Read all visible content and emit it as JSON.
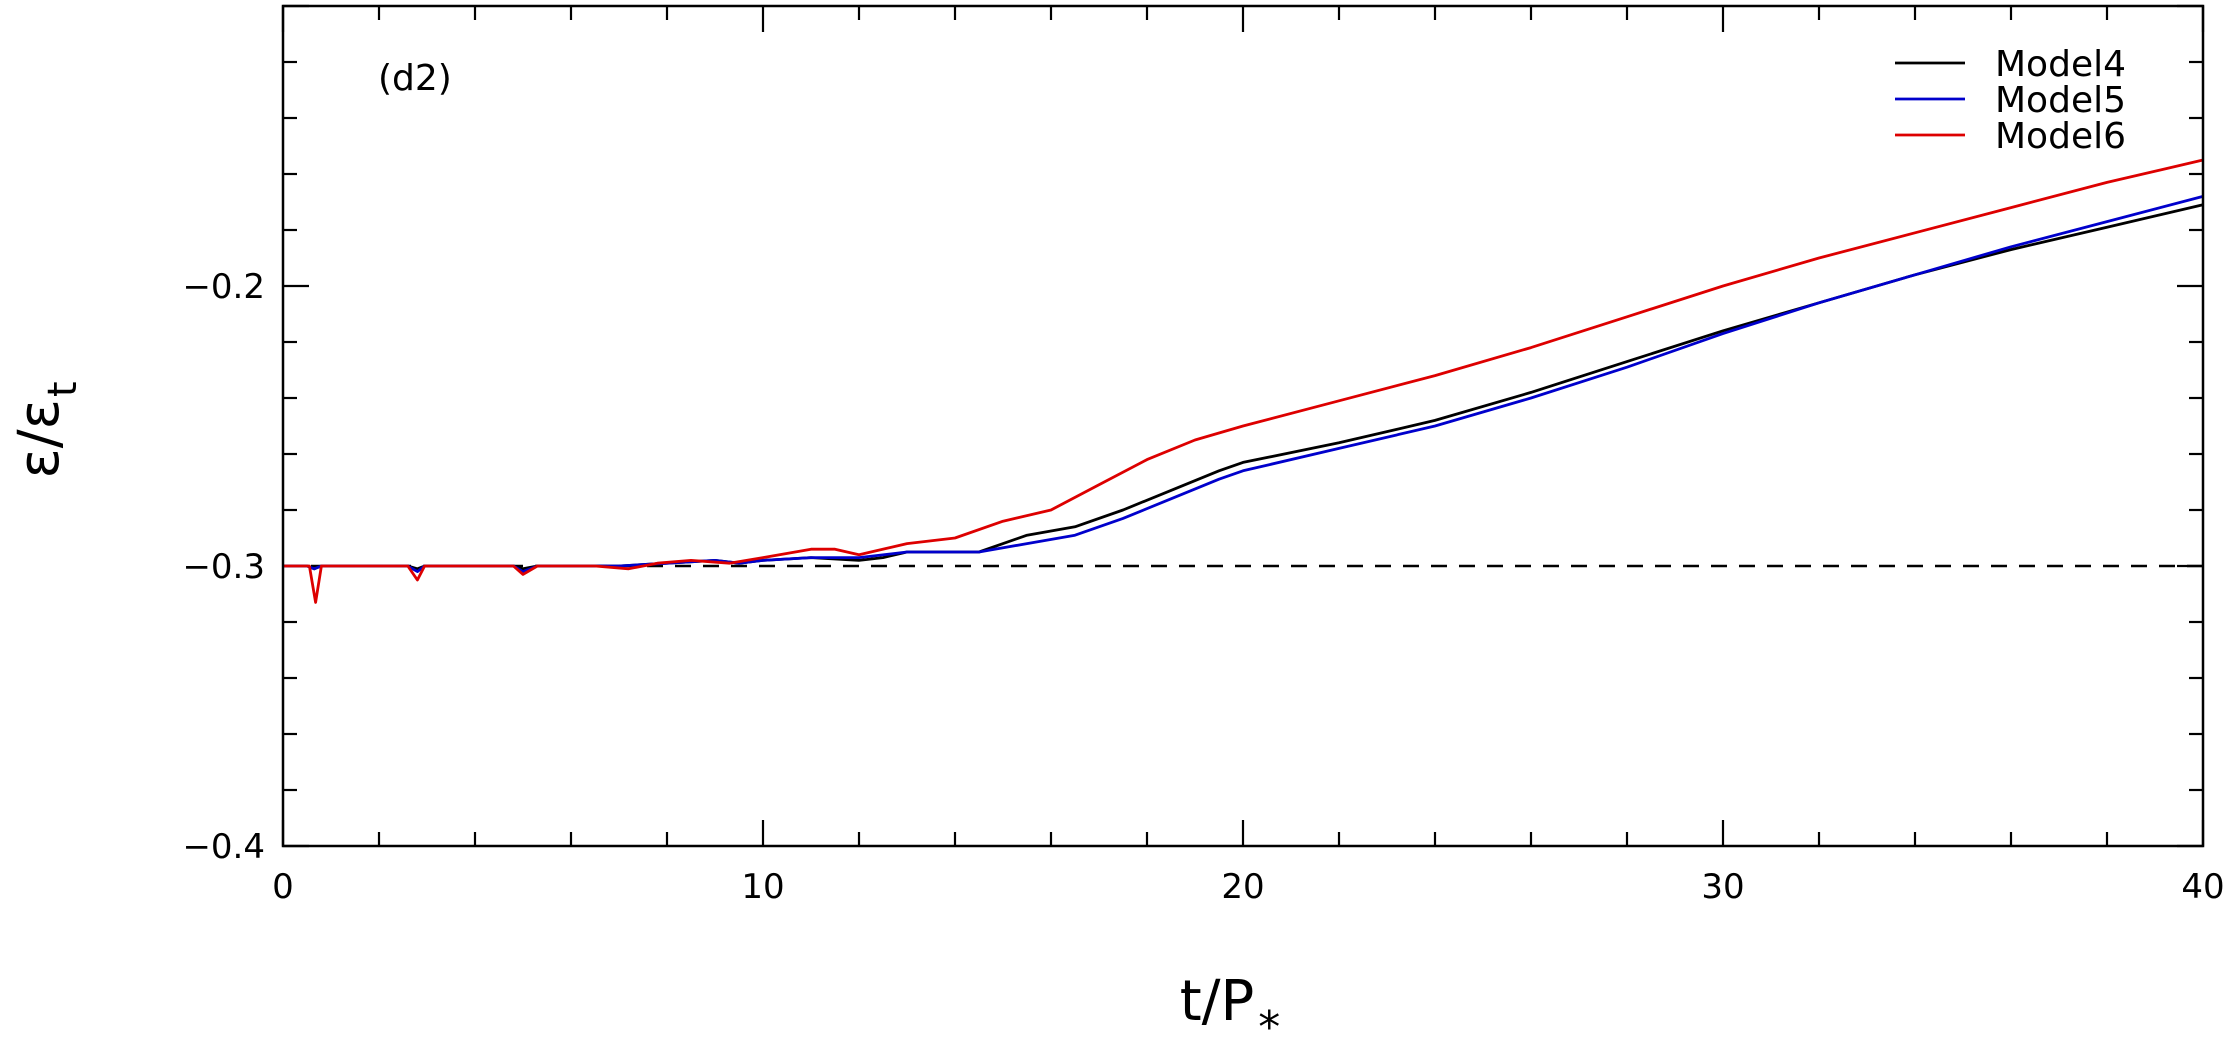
{
  "chart_data": {
    "type": "line",
    "panel_label": "(d2)",
    "xlabel": {
      "main": "t/P",
      "sub": "*"
    },
    "ylabel": {
      "main": "ε/ε",
      "sub": "t"
    },
    "xlim": [
      0,
      40
    ],
    "ylim": [
      -0.4,
      -0.1
    ],
    "x_ticks": [
      0,
      10,
      20,
      30,
      40
    ],
    "x_tick_labels": [
      "0",
      "10",
      "20",
      "30",
      "40"
    ],
    "y_ticks": [
      -0.4,
      -0.3,
      -0.2
    ],
    "y_tick_labels": [
      "−0.4",
      "−0.3",
      "−0.2"
    ],
    "reference_line": {
      "y": -0.3,
      "style": "dashed",
      "color": "#000000"
    },
    "legend_position": "top-right",
    "series": [
      {
        "name": "Model4",
        "color": "#000000",
        "points": [
          [
            0,
            -0.3
          ],
          [
            0.5,
            -0.3
          ],
          [
            0.65,
            -0.301
          ],
          [
            0.8,
            -0.3
          ],
          [
            2.6,
            -0.3
          ],
          [
            2.8,
            -0.301
          ],
          [
            2.95,
            -0.3
          ],
          [
            4.8,
            -0.3
          ],
          [
            5.0,
            -0.301
          ],
          [
            5.3,
            -0.3
          ],
          [
            7.0,
            -0.3
          ],
          [
            8.0,
            -0.299
          ],
          [
            9.0,
            -0.298
          ],
          [
            9.5,
            -0.299
          ],
          [
            10,
            -0.298
          ],
          [
            11,
            -0.297
          ],
          [
            12.0,
            -0.298
          ],
          [
            12.5,
            -0.297
          ],
          [
            13,
            -0.295
          ],
          [
            14.5,
            -0.295
          ],
          [
            15.5,
            -0.289
          ],
          [
            16.5,
            -0.286
          ],
          [
            17.5,
            -0.28
          ],
          [
            18.5,
            -0.273
          ],
          [
            19.5,
            -0.266
          ],
          [
            20,
            -0.263
          ],
          [
            22,
            -0.256
          ],
          [
            24,
            -0.248
          ],
          [
            26,
            -0.238
          ],
          [
            28,
            -0.227
          ],
          [
            30,
            -0.216
          ],
          [
            32,
            -0.206
          ],
          [
            34,
            -0.196
          ],
          [
            36,
            -0.187
          ],
          [
            38,
            -0.179
          ],
          [
            40,
            -0.171
          ]
        ]
      },
      {
        "name": "Model5",
        "color": "#0000cc",
        "points": [
          [
            0,
            -0.3
          ],
          [
            0.5,
            -0.3
          ],
          [
            0.65,
            -0.301
          ],
          [
            0.8,
            -0.3
          ],
          [
            2.6,
            -0.3
          ],
          [
            2.8,
            -0.302
          ],
          [
            2.95,
            -0.3
          ],
          [
            4.8,
            -0.3
          ],
          [
            5.0,
            -0.302
          ],
          [
            5.3,
            -0.3
          ],
          [
            7.0,
            -0.3
          ],
          [
            8.0,
            -0.299
          ],
          [
            9.0,
            -0.298
          ],
          [
            9.5,
            -0.299
          ],
          [
            10,
            -0.298
          ],
          [
            11,
            -0.297
          ],
          [
            12,
            -0.297
          ],
          [
            13,
            -0.295
          ],
          [
            14.5,
            -0.295
          ],
          [
            15.5,
            -0.292
          ],
          [
            16.5,
            -0.289
          ],
          [
            17.5,
            -0.283
          ],
          [
            18.5,
            -0.276
          ],
          [
            19.5,
            -0.269
          ],
          [
            20,
            -0.266
          ],
          [
            22,
            -0.258
          ],
          [
            24,
            -0.25
          ],
          [
            26,
            -0.24
          ],
          [
            28,
            -0.229
          ],
          [
            30,
            -0.217
          ],
          [
            32,
            -0.206
          ],
          [
            34,
            -0.196
          ],
          [
            36,
            -0.186
          ],
          [
            38,
            -0.177
          ],
          [
            40,
            -0.168
          ]
        ]
      },
      {
        "name": "Model6",
        "color": "#dd0000",
        "points": [
          [
            0,
            -0.3
          ],
          [
            0.55,
            -0.3
          ],
          [
            0.68,
            -0.313
          ],
          [
            0.8,
            -0.3
          ],
          [
            2.6,
            -0.3
          ],
          [
            2.8,
            -0.305
          ],
          [
            2.95,
            -0.3
          ],
          [
            4.8,
            -0.3
          ],
          [
            5.0,
            -0.303
          ],
          [
            5.3,
            -0.3
          ],
          [
            6.5,
            -0.3
          ],
          [
            7.2,
            -0.301
          ],
          [
            7.8,
            -0.299
          ],
          [
            8.5,
            -0.298
          ],
          [
            9.3,
            -0.299
          ],
          [
            10,
            -0.297
          ],
          [
            11,
            -0.294
          ],
          [
            11.5,
            -0.294
          ],
          [
            12,
            -0.296
          ],
          [
            13,
            -0.292
          ],
          [
            14,
            -0.29
          ],
          [
            15,
            -0.284
          ],
          [
            16,
            -0.28
          ],
          [
            17,
            -0.271
          ],
          [
            18,
            -0.262
          ],
          [
            19,
            -0.255
          ],
          [
            20,
            -0.25
          ],
          [
            22,
            -0.241
          ],
          [
            24,
            -0.232
          ],
          [
            26,
            -0.222
          ],
          [
            28,
            -0.211
          ],
          [
            30,
            -0.2
          ],
          [
            32,
            -0.19
          ],
          [
            34,
            -0.181
          ],
          [
            36,
            -0.172
          ],
          [
            38,
            -0.163
          ],
          [
            40,
            -0.155
          ]
        ]
      }
    ]
  }
}
